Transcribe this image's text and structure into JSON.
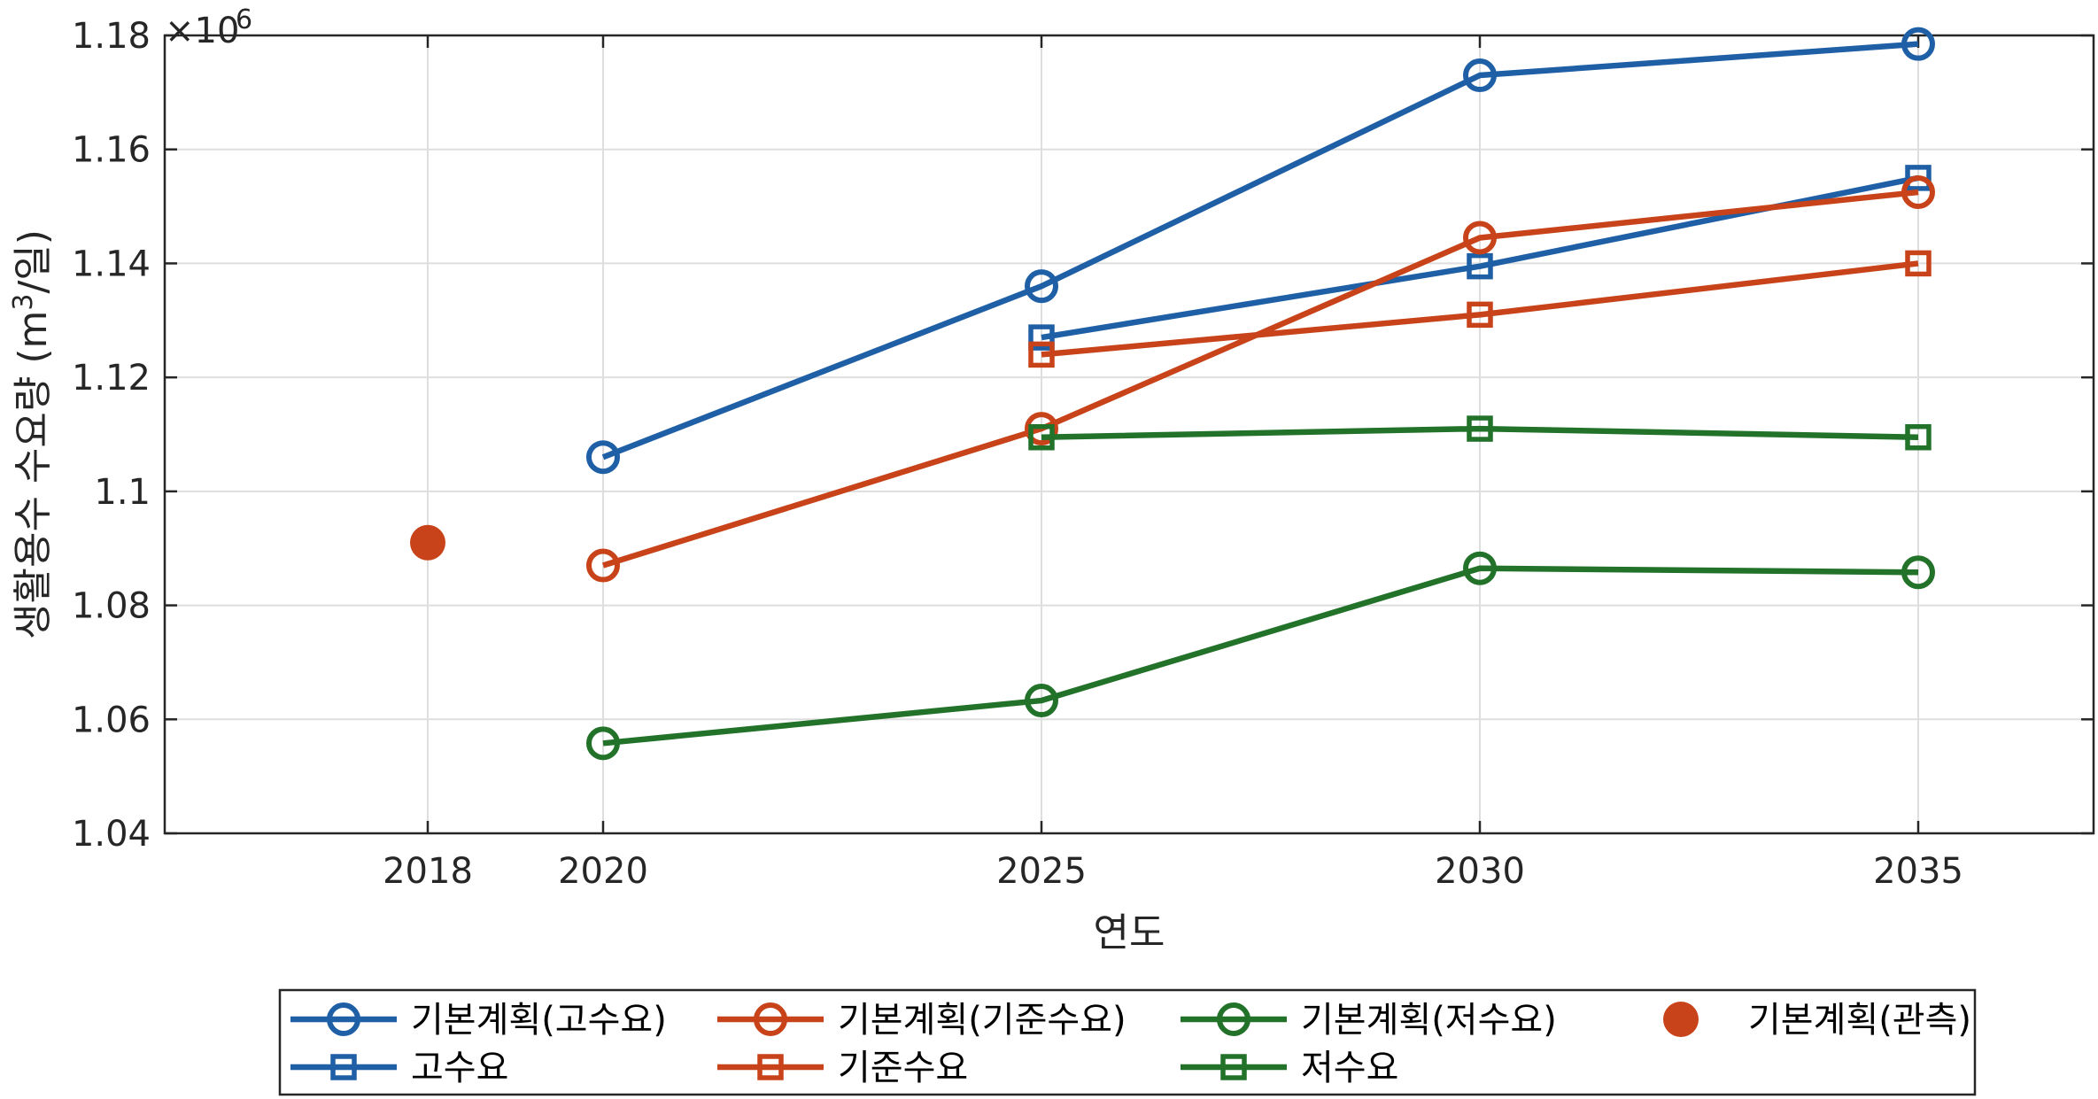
{
  "chart_data": {
    "type": "line",
    "title": "",
    "xlabel": "연도",
    "ylabel_main": "생활용수 수요량 (m",
    "ylabel_sup": "3",
    "ylabel_tail": "/일)",
    "y_exponent_base": "×10",
    "y_exponent_power": "6",
    "xlim": [
      2015,
      2037
    ],
    "ylim": [
      1.04,
      1.18
    ],
    "xticks": [
      2018,
      2020,
      2025,
      2030,
      2035
    ],
    "xtick_labels": [
      "2018",
      "2020",
      "2025",
      "2030",
      "2035"
    ],
    "yticks": [
      1.04,
      1.06,
      1.08,
      1.1,
      1.12,
      1.14,
      1.16,
      1.18
    ],
    "ytick_labels": [
      "1.04",
      "1.06",
      "1.08",
      "1.1",
      "1.12",
      "1.14",
      "1.16",
      "1.18"
    ],
    "grid": true,
    "legend_position": "bottom-outside",
    "series": [
      {
        "name": "기본계획(고수요)",
        "color": "#1f5fa6",
        "marker": "circle",
        "line": true,
        "x": [
          2020,
          2025,
          2030,
          2035
        ],
        "y": [
          1.106,
          1.136,
          1.173,
          1.1785
        ]
      },
      {
        "name": "고수요",
        "color": "#1f5fa6",
        "marker": "square",
        "line": true,
        "x": [
          2025,
          2030,
          2035
        ],
        "y": [
          1.127,
          1.1395,
          1.155
        ]
      },
      {
        "name": "기본계획(기준수요)",
        "color": "#c8431a",
        "marker": "circle",
        "line": true,
        "x": [
          2020,
          2025,
          2030,
          2035
        ],
        "y": [
          1.087,
          1.111,
          1.1445,
          1.1525
        ]
      },
      {
        "name": "기준수요",
        "color": "#c8431a",
        "marker": "square",
        "line": true,
        "x": [
          2025,
          2030,
          2035
        ],
        "y": [
          1.124,
          1.131,
          1.14
        ]
      },
      {
        "name": "기본계획(저수요)",
        "color": "#22722a",
        "marker": "circle",
        "line": true,
        "x": [
          2020,
          2025,
          2030,
          2035
        ],
        "y": [
          1.0558,
          1.0633,
          1.0865,
          1.0858
        ]
      },
      {
        "name": "저수요",
        "color": "#22722a",
        "marker": "square",
        "line": true,
        "x": [
          2025,
          2030,
          2035
        ],
        "y": [
          1.1095,
          1.111,
          1.1095
        ]
      },
      {
        "name": "기본계획(관측)",
        "color": "#c8431a",
        "marker": "filled-circle",
        "line": false,
        "x": [
          2018
        ],
        "y": [
          1.091
        ]
      }
    ],
    "legend_rows": [
      [
        "기본계획(고수요)",
        "기본계획(기준수요)",
        "기본계획(저수요)",
        "기본계획(관측)"
      ],
      [
        "고수요",
        "기준수요",
        "저수요"
      ]
    ]
  }
}
